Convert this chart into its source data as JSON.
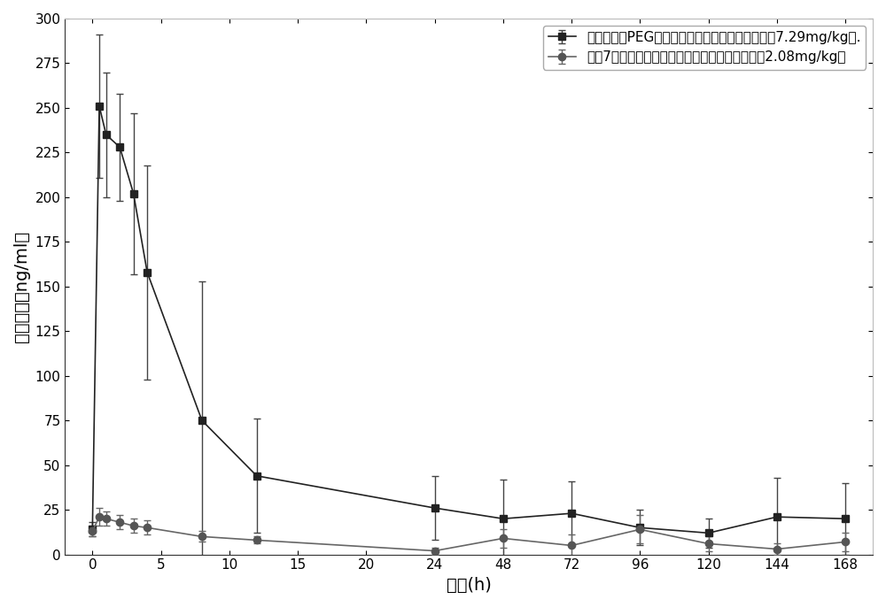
{
  "series1_label": "肌肉注射经PEG修饰的黄体酮纳米粒药时曲线图（7.29mg/kg）.",
  "series2_label": "重复7天肌肉注射市售黄体酮油溶液药时曲线图（2.08mg/kg）",
  "xlabel": "时间(h)",
  "ylabel": "血药浓度（ng/ml）",
  "xtick_labels": [
    "0",
    "5",
    "10",
    "15",
    "20",
    "24",
    "48",
    "72",
    "96",
    "120",
    "144",
    "168"
  ],
  "xtick_real": [
    0,
    5,
    10,
    15,
    20,
    24,
    48,
    72,
    96,
    120,
    144,
    168
  ],
  "series1_x_real": [
    0,
    0.5,
    1,
    2,
    3,
    4,
    8,
    12,
    24,
    48,
    72,
    96,
    120,
    144,
    168
  ],
  "series1_y": [
    14,
    251,
    235,
    228,
    202,
    158,
    75,
    44,
    26,
    20,
    23,
    15,
    12,
    21,
    20
  ],
  "series1_yerr": [
    4,
    40,
    35,
    30,
    45,
    60,
    78,
    32,
    18,
    22,
    18,
    10,
    8,
    22,
    20
  ],
  "series2_x_real": [
    0,
    0.5,
    1,
    2,
    3,
    4,
    8,
    12,
    24,
    48,
    72,
    96,
    120,
    144,
    168
  ],
  "series2_y": [
    13,
    21,
    20,
    18,
    16,
    15,
    10,
    8,
    2,
    9,
    5,
    14,
    6,
    3,
    7
  ],
  "series2_yerr": [
    3,
    5,
    4,
    4,
    4,
    4,
    3,
    2,
    2,
    5,
    6,
    8,
    4,
    3,
    5
  ],
  "yticks": [
    0,
    25,
    50,
    75,
    100,
    125,
    150,
    175,
    200,
    225,
    250,
    275,
    300
  ],
  "ylim": [
    0,
    300
  ],
  "line_color": "#555555",
  "marker_color1": "#222222",
  "marker_color2": "#555555",
  "background_color": "#ffffff",
  "legend_fontsize": 11,
  "axis_fontsize": 14,
  "tick_fontsize": 11,
  "capsize": 3,
  "elinewidth": 1.0,
  "linewidth": 1.2,
  "markersize": 6
}
